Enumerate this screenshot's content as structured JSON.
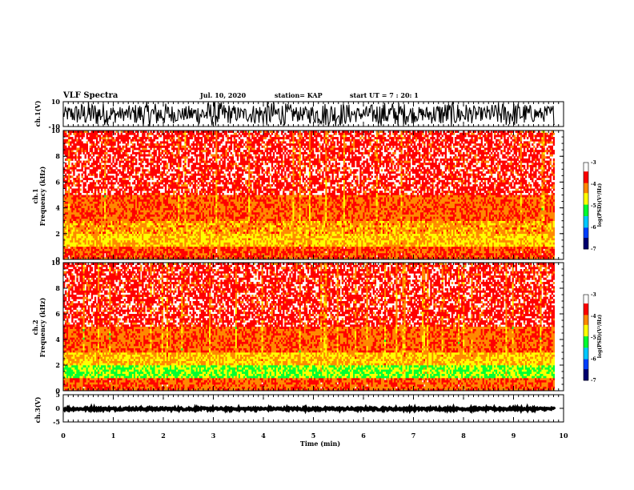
{
  "header": {
    "title": "VLF Spectra",
    "date": "Jul. 10, 2020",
    "station": "station= KAP",
    "start": "start  UT =   7 : 20: 1"
  },
  "chart_data": [
    {
      "type": "line",
      "panel": "ch1-waveform",
      "ylabel": "ch.1(V)",
      "ylim": [
        -10,
        10
      ],
      "y_ticks": [
        10,
        -10
      ],
      "xlim": [
        0,
        10
      ],
      "trace": {
        "min": -10,
        "max": 10,
        "x_end": 9.82
      }
    },
    {
      "type": "heatmap",
      "panel": "ch1-spectrogram",
      "ylabel": [
        "ch.1",
        "Frequency (kHz)"
      ],
      "xlim": [
        0,
        10
      ],
      "ylim": [
        0,
        10
      ],
      "y_ticks": [
        0,
        2,
        4,
        6,
        8,
        10
      ],
      "data_x_end": 9.82,
      "psd_bands": [
        {
          "freq": [
            0,
            1
          ],
          "log_psd": -3.9
        },
        {
          "freq": [
            1,
            2
          ],
          "log_psd": -4.5
        },
        {
          "freq": [
            2,
            3
          ],
          "log_psd": -4.3
        },
        {
          "freq": [
            3,
            5
          ],
          "log_psd": -4.0
        },
        {
          "freq": [
            5,
            10
          ],
          "log_psd": -3.6
        }
      ],
      "colorbar": {
        "label": "log(PSD)(V²/Hz)",
        "range": [
          -7,
          -3
        ],
        "ticks": [
          -3,
          -4,
          -5,
          -6,
          -7
        ]
      }
    },
    {
      "type": "heatmap",
      "panel": "ch2-spectrogram",
      "ylabel": [
        "ch.2",
        "Frequency (kHz)"
      ],
      "xlim": [
        0,
        10
      ],
      "ylim": [
        0,
        10
      ],
      "y_ticks": [
        0,
        2,
        4,
        6,
        8,
        10
      ],
      "data_x_end": 9.82,
      "psd_bands": [
        {
          "freq": [
            0,
            1
          ],
          "log_psd": -4.0
        },
        {
          "freq": [
            1,
            2
          ],
          "log_psd": -5.0
        },
        {
          "freq": [
            2,
            3
          ],
          "log_psd": -4.5
        },
        {
          "freq": [
            3,
            5
          ],
          "log_psd": -4.0
        },
        {
          "freq": [
            5,
            10
          ],
          "log_psd": -3.6
        }
      ],
      "colorbar": {
        "label": "log(PSD)(V²/Hz)",
        "range": [
          -7,
          -3
        ],
        "ticks": [
          -3,
          -4,
          -5,
          -6,
          -7
        ]
      }
    },
    {
      "type": "line",
      "panel": "ch3-waveform",
      "ylabel": "ch.3(V)",
      "ylim": [
        -5,
        5
      ],
      "y_ticks": [
        5,
        0,
        -5
      ],
      "xlim": [
        0,
        10
      ],
      "xlabel": "Time (min)",
      "x_ticks": [
        0,
        1,
        2,
        3,
        4,
        5,
        6,
        7,
        8,
        9,
        10
      ],
      "trace": {
        "min": -0.6,
        "max": 0.2,
        "x_end": 9.82
      }
    }
  ],
  "colors": {
    "axis": "#000000",
    "trace": "#000000",
    "background": "#ffffff",
    "colormap": [
      "#00006e",
      "#0040ff",
      "#00c8ff",
      "#00ff30",
      "#ffff00",
      "#ff8800",
      "#ff0000",
      "#ffffff"
    ]
  }
}
